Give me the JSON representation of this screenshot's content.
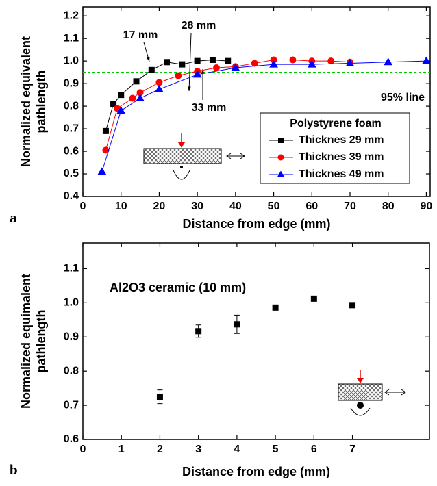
{
  "chart_data": [
    {
      "type": "line",
      "panel_label": "a",
      "xlabel": "Distance from edge (mm)",
      "ylabel": [
        "Normalized equivalent",
        "pathlength"
      ],
      "xlim": [
        0,
        91
      ],
      "xticks": [
        0,
        10,
        20,
        30,
        40,
        50,
        60,
        70,
        80,
        90
      ],
      "ylim": [
        0.4,
        1.24
      ],
      "yticks": [
        0.4,
        0.5,
        0.6,
        0.7,
        0.8,
        0.9,
        1.0,
        1.1,
        1.2
      ],
      "legend_title": "Polystyrene foam",
      "series": [
        {
          "name": "Thicknes 29 mm",
          "color": "#000000",
          "marker": "square",
          "x": [
            6,
            8,
            10,
            14,
            18,
            22,
            26,
            30,
            34,
            38
          ],
          "values": [
            0.69,
            0.81,
            0.85,
            0.91,
            0.96,
            0.995,
            0.985,
            1.0,
            1.005,
            1.0
          ]
        },
        {
          "name": "Thicknes 39 mm",
          "color": "#ff0000",
          "marker": "circle",
          "x": [
            6,
            9,
            13,
            15,
            20,
            25,
            30,
            35,
            40,
            45,
            50,
            55,
            60,
            65,
            70
          ],
          "values": [
            0.605,
            0.79,
            0.835,
            0.86,
            0.905,
            0.935,
            0.955,
            0.97,
            0.975,
            0.99,
            1.005,
            1.005,
            1.0,
            1.0,
            0.995
          ]
        },
        {
          "name": "Thicknes 49 mm",
          "color": "#0000ff",
          "marker": "triangle",
          "x": [
            5,
            10,
            15,
            20,
            30,
            40,
            50,
            60,
            70,
            80,
            90
          ],
          "values": [
            0.51,
            0.78,
            0.835,
            0.875,
            0.94,
            0.97,
            0.985,
            0.985,
            0.99,
            0.995,
            1.0
          ]
        }
      ],
      "reference_line": {
        "value": 0.95,
        "color": "#00cc00",
        "label": "95% line"
      },
      "annotations": [
        "17 mm",
        "28 mm",
        "33 mm"
      ]
    },
    {
      "type": "errorbar",
      "panel_label": "b",
      "xlabel": "Distance from edge (mm)",
      "ylabel": [
        "Normalized equimalent",
        "pathlength"
      ],
      "xlim": [
        0,
        9
      ],
      "xticks": [
        0,
        1,
        2,
        3,
        4,
        5,
        6,
        7
      ],
      "ylim": [
        0.6,
        1.175
      ],
      "yticks": [
        0.6,
        0.7,
        0.8,
        0.9,
        1.0,
        1.1
      ],
      "annotations": [
        "Al2O3 ceramic (10 mm)"
      ],
      "series": [
        {
          "color": "#000000",
          "marker": "square",
          "x": [
            2,
            3,
            4,
            5,
            6,
            7
          ],
          "values": [
            0.725,
            0.917,
            0.937,
            0.986,
            1.012,
            0.993
          ],
          "errors": [
            0.02,
            0.018,
            0.027,
            0.006,
            0.004,
            0.004
          ]
        }
      ]
    }
  ]
}
